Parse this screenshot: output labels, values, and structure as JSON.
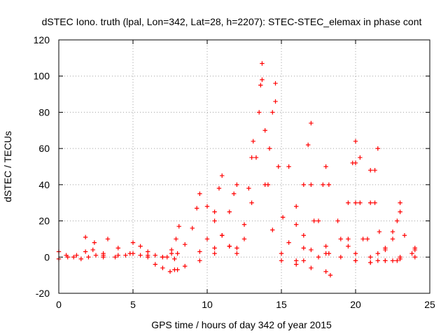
{
  "chart_data": {
    "type": "scatter",
    "title": "dSTEC Iono. truth (lpal, Lon=342, Lat=28, h=2207): STEC-STEC_elemax in phase cont",
    "xlabel": "GPS time / hours of day 342 of year 2015",
    "ylabel": "dSTEC  / TECUs",
    "xlim": [
      0,
      25
    ],
    "ylim": [
      -20,
      120
    ],
    "xticks": [
      0,
      5,
      10,
      15,
      20,
      25
    ],
    "yticks": [
      -20,
      0,
      20,
      40,
      60,
      80,
      100,
      120
    ],
    "grid": true,
    "marker": "+",
    "color": "#ff0000",
    "series": [
      {
        "x": [
          0.0,
          0.5,
          1.0,
          1.5,
          2.0,
          2.5,
          3.0
        ],
        "y": [
          3,
          1,
          0,
          -1,
          0,
          1,
          2
        ]
      },
      {
        "x": [
          0.0,
          0.6,
          1.2,
          1.8,
          2.4
        ],
        "y": [
          -1,
          0,
          1,
          3,
          8
        ]
      },
      {
        "x": [
          1.8,
          2.3,
          3.0,
          3.8,
          4.5
        ],
        "y": [
          11,
          4,
          1,
          0,
          1
        ]
      },
      {
        "x": [
          3.3,
          4.0,
          4.8,
          5.5,
          6.0
        ],
        "y": [
          10,
          5,
          2,
          1,
          0
        ]
      },
      {
        "x": [
          3.0,
          4.0,
          5.0,
          6.0,
          7.0,
          7.8
        ],
        "y": [
          0,
          1,
          2,
          1,
          0,
          -1
        ]
      },
      {
        "x": [
          5.0,
          5.5,
          6.0,
          6.5,
          7.0,
          7.6
        ],
        "y": [
          8,
          6,
          3,
          1,
          0,
          2
        ]
      },
      {
        "x": [
          6.5,
          7.0,
          7.5,
          8.0
        ],
        "y": [
          -4,
          -6,
          -8,
          -7
        ]
      },
      {
        "x": [
          7.3,
          7.6,
          7.9,
          8.1
        ],
        "y": [
          0,
          4,
          10,
          17
        ]
      },
      {
        "x": [
          8.0,
          8.5,
          9.0,
          9.3,
          9.5
        ],
        "y": [
          2,
          7,
          16,
          27,
          35
        ]
      },
      {
        "x": [
          7.8,
          8.5,
          9.5,
          10.5,
          11.5
        ],
        "y": [
          -7,
          -5,
          -2,
          2,
          6
        ]
      },
      {
        "x": [
          9.5,
          10.0,
          10.5,
          10.8,
          11.0
        ],
        "y": [
          3,
          10,
          25,
          38,
          45
        ]
      },
      {
        "x": [
          10.5,
          11.0,
          11.5,
          11.8,
          12.0
        ],
        "y": [
          5,
          12,
          25,
          35,
          40
        ]
      },
      {
        "x": [
          10.0,
          10.5,
          11.0,
          11.5,
          12.0
        ],
        "y": [
          28,
          20,
          12,
          6,
          2
        ]
      },
      {
        "x": [
          12.0,
          12.5,
          12.8,
          13.0,
          13.1
        ],
        "y": [
          5,
          18,
          38,
          55,
          64
        ]
      },
      {
        "x": [
          12.5,
          13.0,
          13.3,
          13.5,
          13.6,
          13.7
        ],
        "y": [
          10,
          30,
          55,
          80,
          95,
          107
        ]
      },
      {
        "x": [
          13.7,
          13.9,
          14.1,
          14.4,
          15.0,
          16.0
        ],
        "y": [
          98,
          70,
          40,
          15,
          2,
          -2
        ]
      },
      {
        "x": [
          13.9,
          14.2,
          14.4,
          14.6
        ],
        "y": [
          40,
          60,
          80,
          96
        ]
      },
      {
        "x": [
          14.6,
          14.8,
          15.1,
          15.5,
          16.5
        ],
        "y": [
          86,
          50,
          22,
          8,
          -2
        ]
      },
      {
        "x": [
          15.5,
          16.0,
          16.5,
          17.0,
          17.5
        ],
        "y": [
          50,
          28,
          12,
          4,
          0
        ]
      },
      {
        "x": [
          16.0,
          16.5,
          16.8,
          17.0
        ],
        "y": [
          18,
          40,
          62,
          74
        ]
      },
      {
        "x": [
          17.0,
          17.5,
          18.0,
          18.2
        ],
        "y": [
          40,
          20,
          6,
          2
        ]
      },
      {
        "x": [
          16.5,
          17.2,
          17.8,
          18.0
        ],
        "y": [
          5,
          20,
          40,
          50
        ]
      },
      {
        "x": [
          18.2,
          18.8,
          19.5,
          20.0,
          21.0
        ],
        "y": [
          40,
          20,
          6,
          2,
          0
        ]
      },
      {
        "x": [
          15.0,
          16.0,
          17.0,
          18.0,
          18.3
        ],
        "y": [
          -2,
          -4,
          -6,
          -8,
          -10
        ]
      },
      {
        "x": [
          19.0,
          19.5,
          19.8,
          20.0
        ],
        "y": [
          10,
          30,
          52,
          64
        ]
      },
      {
        "x": [
          20.0,
          20.3,
          20.8,
          21.5,
          22.5
        ],
        "y": [
          52,
          30,
          10,
          2,
          -2
        ]
      },
      {
        "x": [
          19.5,
          20.0,
          20.3
        ],
        "y": [
          10,
          30,
          55
        ]
      },
      {
        "x": [
          20.5,
          21.0,
          21.3,
          21.5
        ],
        "y": [
          10,
          30,
          48,
          60
        ]
      },
      {
        "x": [
          21.0,
          21.3,
          21.6,
          22.0,
          22.8
        ],
        "y": [
          48,
          30,
          14,
          4,
          -2
        ]
      },
      {
        "x": [
          21.5,
          22.0,
          22.5,
          23.0,
          24.0
        ],
        "y": [
          -2,
          5,
          14,
          25,
          0
        ]
      },
      {
        "x": [
          22.5,
          22.8,
          23.0,
          23.3,
          23.8
        ],
        "y": [
          10,
          20,
          30,
          12,
          2
        ]
      },
      {
        "x": [
          18.0,
          19.0,
          20.0,
          21.0,
          22.0,
          23.0,
          24.0
        ],
        "y": [
          2,
          0,
          -2,
          -3,
          -2,
          -1,
          4
        ]
      },
      {
        "x": [
          20.0,
          21.0,
          22.0,
          23.0,
          24.0
        ],
        "y": [
          -2,
          -3,
          -2,
          0,
          5
        ]
      }
    ]
  }
}
